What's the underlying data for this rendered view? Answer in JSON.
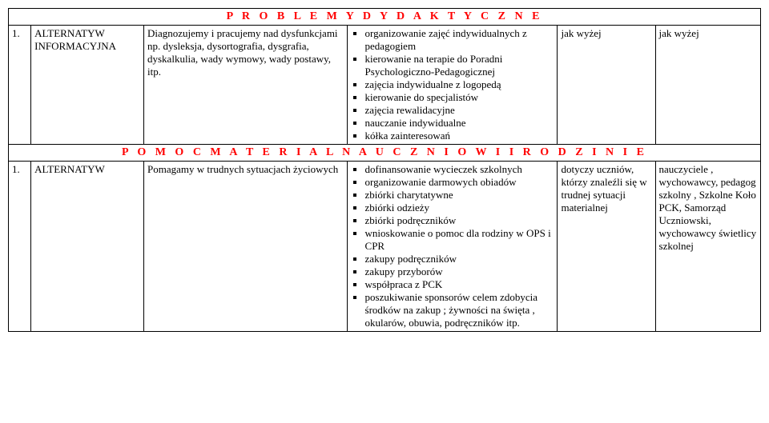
{
  "section1": "P R O B L E M Y   D Y D A K T Y C Z N E",
  "r1": {
    "num": "1.",
    "c2a": "ALTERNATYW",
    "c2b": "INFORMACYJNA",
    "c3": "Diagnozujemy i  pracujemy nad dysfunkcjami np. dysleksja, dysortografia, dysgrafia, dyskalkulia, wady wymowy, wady postawy, itp.",
    "b1": "organizowanie zajęć indywidualnych z pedagogiem",
    "b2": "kierowanie na terapie do Poradni Psychologiczno-Pedagogicznej",
    "b3": "zajęcia  indywidualne  z logopedą",
    "b4": "kierowanie do specjalistów",
    "b5": "zajęcia rewalidacyjne",
    "b6": "nauczanie indywidualne",
    "b7": "kółka zainteresowań",
    "c5": "jak wyżej",
    "c6": "jak wyżej"
  },
  "section2": "P O M O C   M A T E R I A L N A   U C Z N I O W I   I   R O D Z I N I E",
  "r2": {
    "num": "1.",
    "c2": "ALTERNATYW",
    "c3": "Pomagamy w trudnych sytuacjach życiowych",
    "b1": "dofinansowanie wycieczek szkolnych",
    "b2": "organizowanie darmowych obiadów",
    "b3": "zbiórki charytatywne",
    "b4": "zbiórki odzieży",
    "b5": "zbiórki podręczników",
    "b6": "wnioskowanie o pomoc dla rodziny w OPS i CPR",
    "b7": "zakupy podręczników",
    "b8": "zakupy przyborów",
    "b9": "współpraca z PCK",
    "b10": "poszukiwanie sponsorów celem zdobycia środków na zakup ; żywności na święta , okularów, obuwia, podręczników itp.",
    "c5": "dotyczy uczniów, którzy znaleźli się w trudnej sytuacji materialnej",
    "c6": "nauczyciele , wychowawcy, pedagog szkolny , Szkolne Koło PCK, Samorząd Uczniowski, wychowawcy świetlicy szkolnej"
  }
}
